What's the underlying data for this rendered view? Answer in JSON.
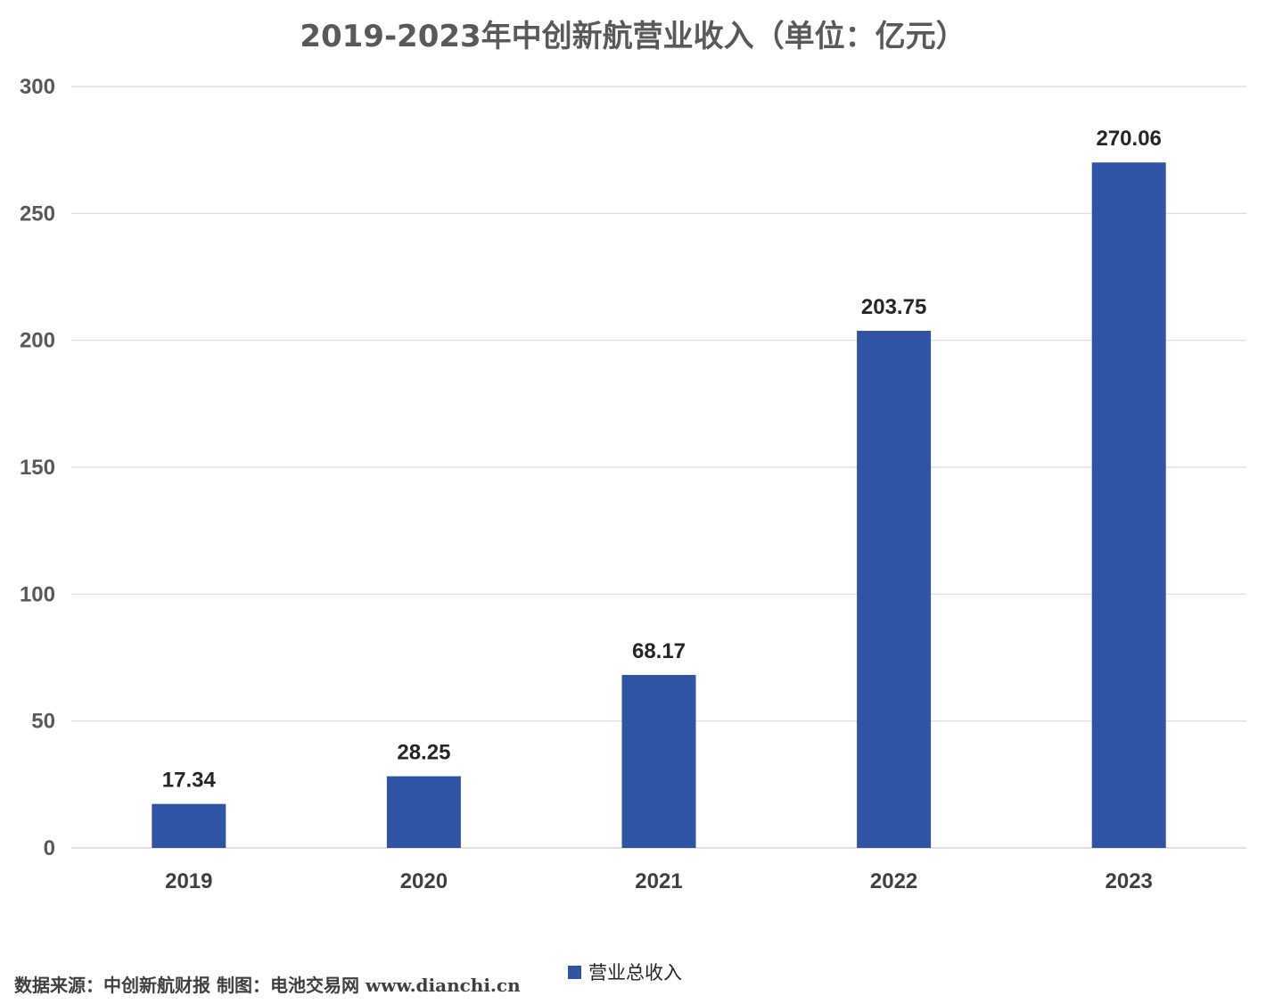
{
  "chart_data": {
    "type": "bar",
    "title": "2019-2023年中创新航营业收入（单位：亿元）",
    "xlabel": "",
    "ylabel": "",
    "categories": [
      "2019",
      "2020",
      "2021",
      "2022",
      "2023"
    ],
    "series": [
      {
        "name": "营业总收入",
        "values": [
          17.34,
          28.25,
          68.17,
          203.75,
          270.06
        ],
        "value_labels": [
          "17.34",
          "28.25",
          "68.17",
          "203.75",
          "270.06"
        ],
        "color": "#2F54A3"
      }
    ],
    "ylim": [
      0,
      300
    ],
    "yticks": [
      0,
      50,
      100,
      150,
      200,
      250,
      300
    ],
    "grid": true,
    "legend_position": "bottom"
  },
  "source_note": "数据来源：中创新航财报  制图：电池交易网 www.dianchi.cn",
  "colors": {
    "bar": "#2F54A3",
    "gridline": "#D9D9D9",
    "axis_text": "#595959"
  }
}
